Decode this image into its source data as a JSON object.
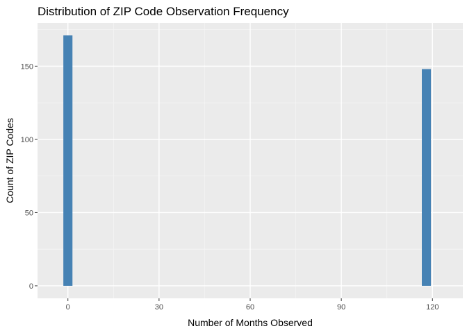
{
  "chart_data": {
    "type": "bar",
    "title": "Distribution of ZIP Code Observation Frequency",
    "xlabel": "Number of Months Observed",
    "ylabel": "Count of ZIP Codes",
    "x": [
      0,
      118
    ],
    "values": [
      171,
      148
    ],
    "bin_width": 3,
    "xlim": [
      -10,
      130
    ],
    "ylim": [
      -8.55,
      179.55
    ],
    "x_ticks": [
      0,
      30,
      60,
      90,
      120
    ],
    "x_tick_labels": [
      "0",
      "30",
      "60",
      "90",
      "120"
    ],
    "y_ticks": [
      0,
      50,
      100,
      150
    ],
    "y_tick_labels": [
      "0",
      "50",
      "100",
      "150"
    ],
    "bar_color": "#4682B4",
    "panel_background": "#EBEBEB",
    "grid": true,
    "legend": "none"
  }
}
